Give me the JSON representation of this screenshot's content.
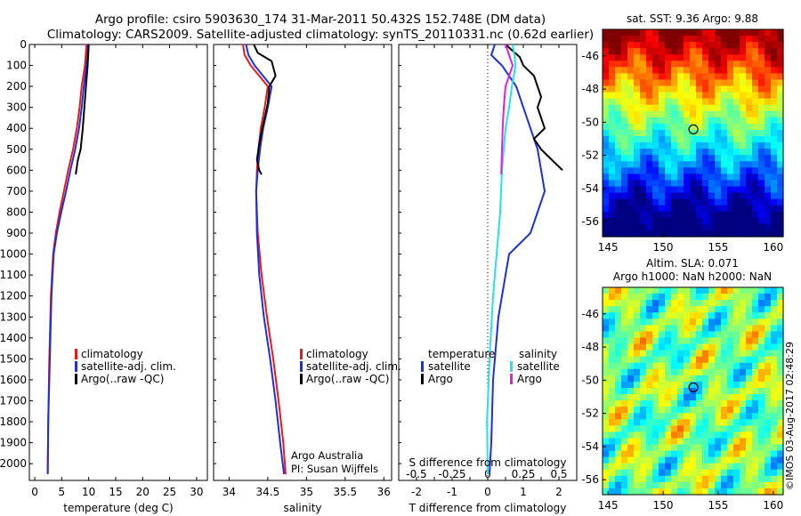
{
  "header": {
    "line1": "Argo profile: csiro 5903630_174 31-Mar-2011 50.432S 152.748E (DM data)",
    "line2": "Climatology: CARS2009. Satellite-adjusted climatology: synTS_20110331.nc (0.62d earlier)"
  },
  "colors": {
    "climatology": "#e41a1c",
    "satellite": "#1f2fd8",
    "argo": "#000000",
    "cyan": "#2ae0e8",
    "magenta": "#e020e0"
  },
  "legend_profile": {
    "items": [
      "climatology",
      "satellite-adj. clim.",
      "Argo(..raw -QC)"
    ]
  },
  "legend_diff": {
    "temp_title": "temperature",
    "sal_title": "salinity",
    "temp_items": [
      "satellite",
      "Argo"
    ],
    "sal_items": [
      "satellite",
      "Argo"
    ]
  },
  "credits": {
    "line1": "Argo Australia",
    "line2": "PI: Susan Wijffels"
  },
  "maps": {
    "sst_title": "sat. SST: 9.36 Argo: 9.88",
    "sla_title1": "Altim. SLA: 0.071",
    "sla_title2": "Argo h1000: NaN h2000: NaN",
    "lat_ticks": [
      "-46",
      "-48",
      "-50",
      "-52",
      "-54",
      "-56"
    ],
    "lon_ticks": [
      "145",
      "150",
      "155",
      "160"
    ],
    "float_lon": 152.748,
    "float_lat": -50.432
  },
  "stamp": "©IMOS 03-Aug-2017 02:48:29",
  "chart_data": [
    {
      "type": "line",
      "xlabel": "temperature (deg C)",
      "ylabel": "",
      "xlim": [
        -1,
        32
      ],
      "ylim": [
        2080,
        0
      ],
      "xticks": [
        0,
        5,
        10,
        15,
        20,
        25,
        30
      ],
      "yticks": [
        0,
        100,
        200,
        300,
        400,
        500,
        600,
        700,
        800,
        900,
        1000,
        1100,
        1200,
        1300,
        1400,
        1500,
        1600,
        1700,
        1800,
        1900,
        2000
      ],
      "series": [
        {
          "name": "climatology",
          "x": [
            9.6,
            9.3,
            8.7,
            8.3,
            7.8,
            7.1,
            6.2,
            5.4,
            4.6,
            3.9,
            3.4,
            3.0,
            2.7,
            2.5,
            2.4
          ],
          "y": [
            0,
            100,
            200,
            300,
            400,
            500,
            600,
            700,
            800,
            900,
            1000,
            1200,
            1500,
            1800,
            2050
          ]
        },
        {
          "name": "satellite-adj. clim.",
          "x": [
            9.9,
            9.6,
            9.1,
            8.7,
            8.2,
            7.5,
            6.6,
            5.8,
            4.9,
            4.1,
            3.5,
            3.1,
            2.8,
            2.5,
            2.4
          ],
          "y": [
            0,
            100,
            200,
            300,
            400,
            500,
            600,
            700,
            800,
            900,
            1000,
            1200,
            1500,
            1800,
            2050
          ]
        },
        {
          "name": "Argo(..raw -QC)",
          "x": [
            10.0,
            9.8,
            9.5,
            9.2,
            8.9,
            8.5,
            8.0,
            7.6
          ],
          "y": [
            0,
            100,
            200,
            300,
            400,
            500,
            550,
            620
          ]
        }
      ]
    },
    {
      "type": "line",
      "xlabel": "salinity",
      "ylabel": "",
      "xlim": [
        33.8,
        36.1
      ],
      "ylim": [
        2080,
        0
      ],
      "xticks": [
        34,
        34.5,
        35,
        35.5,
        36
      ],
      "series": [
        {
          "name": "climatology",
          "x": [
            34.18,
            34.2,
            34.28,
            34.5,
            34.46,
            34.41,
            34.38,
            34.36,
            34.35,
            34.37,
            34.42,
            34.49,
            34.57,
            34.64,
            34.7,
            34.73
          ],
          "y": [
            0,
            50,
            100,
            200,
            300,
            400,
            500,
            600,
            700,
            900,
            1100,
            1300,
            1500,
            1700,
            1900,
            2050
          ]
        },
        {
          "name": "satellite-adj. clim.",
          "x": [
            34.22,
            34.25,
            34.33,
            34.55,
            34.5,
            34.44,
            34.4,
            34.37,
            34.35,
            34.36,
            34.39,
            34.45,
            34.53,
            34.6,
            34.66,
            34.71
          ],
          "y": [
            0,
            50,
            100,
            200,
            300,
            400,
            500,
            600,
            700,
            900,
            1100,
            1300,
            1500,
            1700,
            1900,
            2050
          ]
        },
        {
          "name": "Argo(..raw -QC)",
          "x": [
            34.32,
            34.37,
            34.55,
            34.6,
            34.52,
            34.5,
            34.46,
            34.43,
            34.4,
            34.38,
            34.36,
            34.39,
            34.42
          ],
          "y": [
            0,
            40,
            80,
            150,
            200,
            280,
            350,
            400,
            450,
            500,
            550,
            600,
            620
          ]
        }
      ]
    },
    {
      "type": "line",
      "xlabel": "T difference from climatology",
      "ylabel": "",
      "x2label": "S difference from climatology",
      "xlim": [
        -2.5,
        2.5
      ],
      "ylim": [
        2080,
        0
      ],
      "xticks": [
        -2,
        -1.5,
        -1,
        -0.5,
        0,
        0.5,
        1,
        1.5,
        2
      ],
      "x2ticks": [
        -0.5,
        -0.25,
        0,
        0.25,
        0.5
      ],
      "series": [
        {
          "name": "temperature satellite",
          "x": [
            0.2,
            0.1,
            0.4,
            0.8,
            1.0,
            1.2,
            1.4,
            1.6,
            1.4,
            1.2,
            0.6,
            0.3,
            0.15,
            0.1,
            0.05
          ],
          "y": [
            0,
            50,
            100,
            200,
            300,
            400,
            500,
            700,
            800,
            900,
            1000,
            1300,
            1600,
            1900,
            2050
          ]
        },
        {
          "name": "temperature Argo",
          "x": [
            0.5,
            0.9,
            1.0,
            1.3,
            1.5,
            1.4,
            1.6,
            1.3,
            1.5,
            1.8,
            2.1
          ],
          "y": [
            0,
            60,
            100,
            150,
            250,
            300,
            400,
            450,
            500,
            550,
            600
          ]
        },
        {
          "name": "salinity satellite",
          "x": [
            0.7,
            0.75,
            0.78,
            0.68,
            0.6,
            0.5,
            0.4,
            0.35,
            0.25,
            0.15,
            0.05,
            -0.02,
            0.0
          ],
          "y": [
            0,
            50,
            100,
            200,
            300,
            400,
            600,
            800,
            1000,
            1200,
            1500,
            1800,
            2050
          ]
        },
        {
          "name": "salinity Argo",
          "x": [
            0.5,
            0.6,
            0.7,
            0.5,
            0.45,
            0.42,
            0.4,
            0.38
          ],
          "y": [
            0,
            50,
            100,
            200,
            300,
            400,
            500,
            620
          ]
        }
      ]
    }
  ]
}
